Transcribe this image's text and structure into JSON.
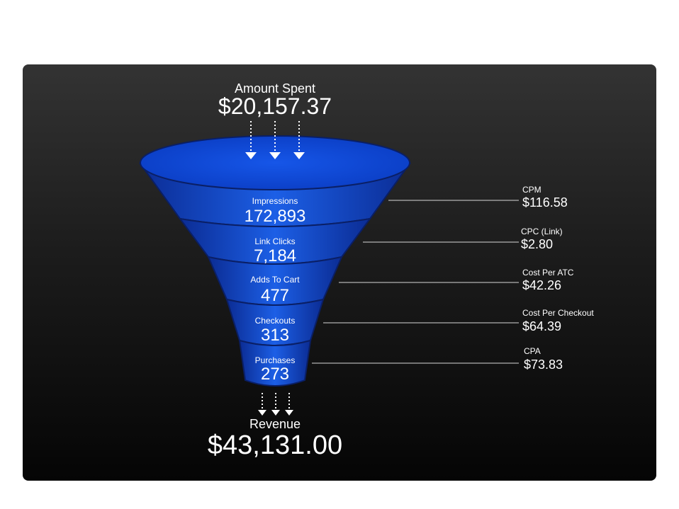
{
  "header": {
    "label": "Amount Spent",
    "value": "$20,157.37"
  },
  "stages": [
    {
      "label": "Impressions",
      "value": "172,893"
    },
    {
      "label": "Link Clicks",
      "value": "7,184"
    },
    {
      "label": "Adds To Cart",
      "value": "477"
    },
    {
      "label": "Checkouts",
      "value": "313"
    },
    {
      "label": "Purchases",
      "value": "273"
    }
  ],
  "metrics": [
    {
      "label": "CPM",
      "value": "$116.58"
    },
    {
      "label": "CPC (Link)",
      "value": "$2.80"
    },
    {
      "label": "Cost Per ATC",
      "value": "$42.26"
    },
    {
      "label": "Cost Per Checkout",
      "value": "$64.39"
    },
    {
      "label": "CPA",
      "value": "$73.83"
    }
  ],
  "footer": {
    "label": "Revenue",
    "value": "$43,131.00"
  },
  "colors": {
    "funnel_light": "#1a5ae0",
    "funnel_dark": "#0a2a8a",
    "top_ellipse": "#0d47d6"
  }
}
